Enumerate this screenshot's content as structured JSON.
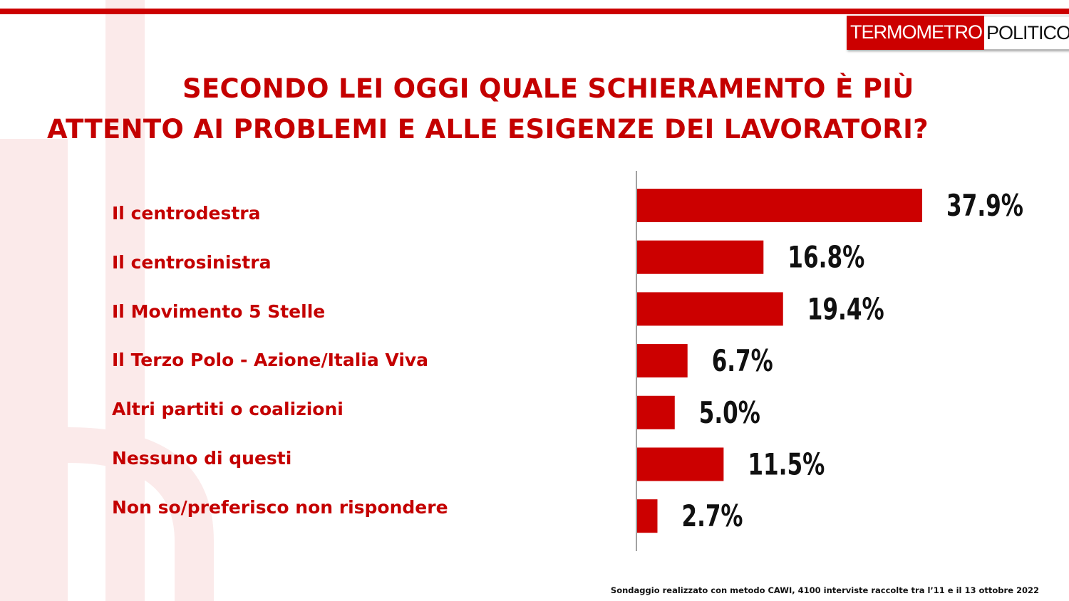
{
  "logo": {
    "part1": "TERMOMETRO",
    "part2": "POLITICO"
  },
  "title": {
    "line1": "SECONDO LEI OGGI QUALE SCHIERAMENTO È PIÙ",
    "line2": "ATTENTO AI PROBLEMI E ALLE ESIGENZE DEI LAVORATORI?"
  },
  "footnote": "Sondaggio realizzato con metodo CAWI, 4100 interviste raccolte tra l’11 e il 13 ottobre 2022",
  "colors": {
    "accent": "#cc0000",
    "text_red": "#c40000",
    "value_text": "#111111"
  },
  "chart_data": {
    "type": "bar",
    "orientation": "horizontal",
    "categories": [
      "Il centrodestra",
      "Il centrosinistra",
      "Il Movimento 5 Stelle",
      "Il Terzo Polo - Azione/Italia Viva",
      "Altri partiti o coalizioni",
      "Nessuno di questi",
      "Non so/preferisco non rispondere"
    ],
    "values": [
      37.9,
      16.8,
      19.4,
      6.7,
      5.0,
      11.5,
      2.7
    ],
    "value_labels": [
      "37.9%",
      "16.8%",
      "19.4%",
      "6.7%",
      "5.0%",
      "11.5%",
      "2.7%"
    ],
    "unit": "%",
    "xlabel": "",
    "ylabel": "",
    "grid": false,
    "legend": "none"
  }
}
